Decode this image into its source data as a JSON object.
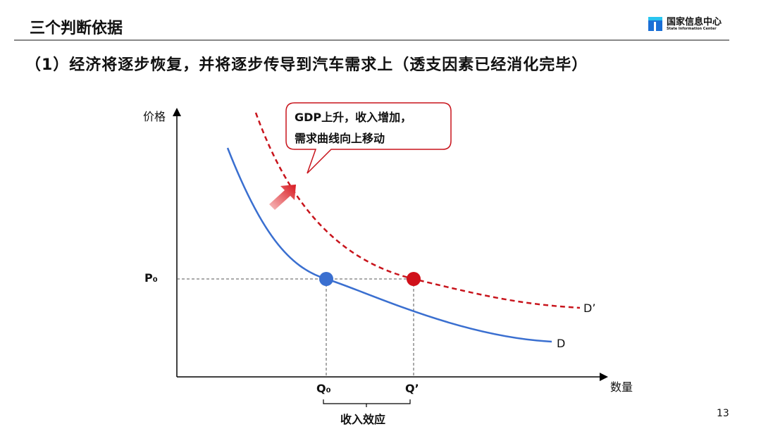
{
  "header": {
    "title": "三个判断依据",
    "subtitle": "（1）经济将逐步恢复，并将逐步传导到汽车需求上（透支因素已经消化完毕）",
    "logo": {
      "name_cn": "国家信息中心",
      "name_en": "State Information Center"
    }
  },
  "diagram": {
    "y_axis_label": "价格",
    "x_axis_label": "数量",
    "price_label": "P₀",
    "q0_label": "Q₀",
    "q1_label": "Q’",
    "curve_d_label": "D",
    "curve_d1_label": "D’",
    "callout_line1": "GDP上升，收入增加，",
    "callout_line2": "需求曲线向上移动",
    "bracket_label": "收入效应",
    "colors": {
      "original": "#3a6fd0",
      "shifted": "#c8141c"
    }
  },
  "footer": {
    "page_number": "13"
  }
}
